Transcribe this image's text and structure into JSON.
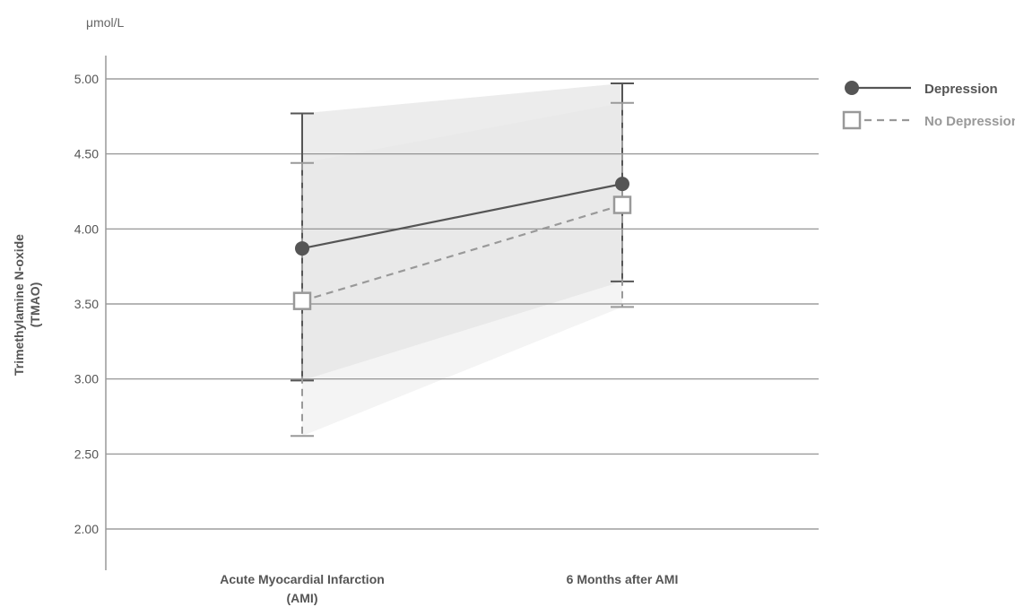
{
  "chart_data": {
    "type": "line",
    "unit": "μmol/L",
    "ylabel_line1": "Trimethylamine N-oxide",
    "ylabel_line2": "(TMAO)",
    "categories": [
      {
        "line1": "Acute Myocardial Infarction",
        "line2": "(AMI)"
      },
      {
        "line1": "6 Months after AMI",
        "line2": ""
      }
    ],
    "ylim": [
      2.0,
      5.0
    ],
    "yticks": [
      "2.00",
      "2.50",
      "3.00",
      "3.50",
      "4.00",
      "4.50",
      "5.00"
    ],
    "grid": true,
    "legend_position": "top-right",
    "series": [
      {
        "name": "Depression",
        "values": [
          3.87,
          4.3
        ],
        "error_low": [
          2.99,
          3.65
        ],
        "error_high": [
          4.77,
          4.97
        ],
        "color": "#555555",
        "marker": "filled-circle",
        "line_style": "solid"
      },
      {
        "name": "No Depression",
        "values": [
          3.52,
          4.16
        ],
        "error_low": [
          2.62,
          3.48
        ],
        "error_high": [
          4.44,
          4.84
        ],
        "color": "#999999",
        "marker": "open-square",
        "line_style": "dashed"
      }
    ]
  }
}
